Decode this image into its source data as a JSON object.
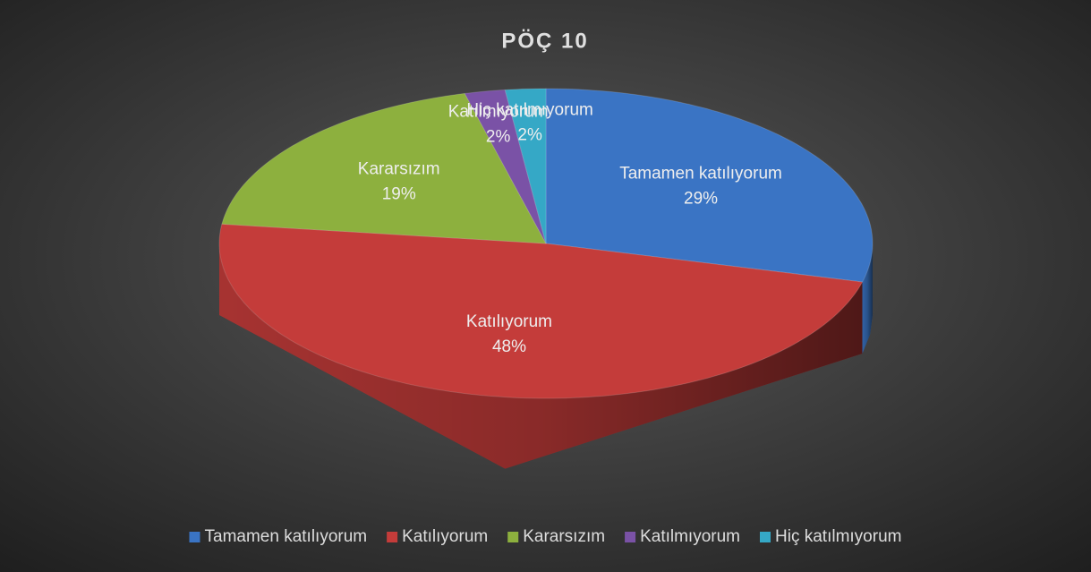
{
  "chart_data": {
    "type": "pie",
    "title": "PÖÇ 10",
    "categories": [
      "Tamamen katılıyorum",
      "Katılıyorum",
      "Kararsızım",
      "Katılmıyorum",
      "Hiç katılmıyorum"
    ],
    "values": [
      29,
      48,
      19,
      2,
      2
    ],
    "value_labels": [
      "29%",
      "48%",
      "19%",
      "2%",
      "2%"
    ],
    "colors": [
      "#3a74c4",
      "#c43c3a",
      "#8db03e",
      "#7a52a6",
      "#35a8c6"
    ],
    "legend": "bottom"
  }
}
